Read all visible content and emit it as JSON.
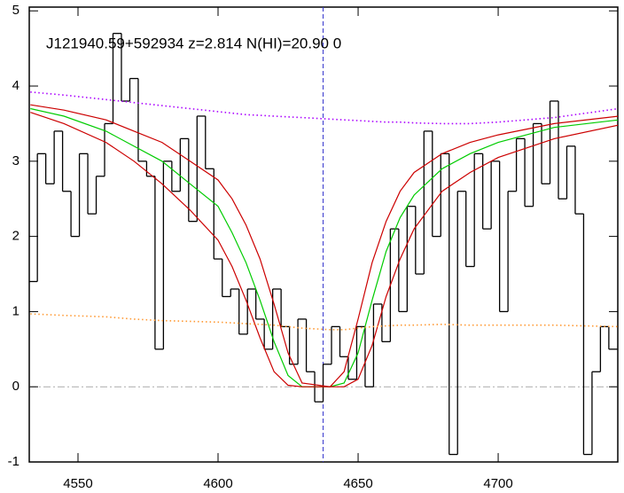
{
  "chart_data": {
    "type": "line",
    "title": "J121940.59+592934 z=2.814 N(HI)=20.90 0",
    "xlim": [
      4532.6,
      4742.7
    ],
    "ylim": [
      -1,
      5.05
    ],
    "xticks": [
      4550,
      4600,
      4650,
      4700
    ],
    "yticks": [
      -1,
      0,
      1,
      2,
      3,
      4,
      5
    ],
    "vlines": [
      4637.5
    ],
    "hlines": [
      0
    ],
    "series": [
      {
        "color": "#000000",
        "style": "steps",
        "x": [
          4534,
          4537,
          4540,
          4543,
          4546,
          4549,
          4552,
          4555,
          4558,
          4561,
          4564,
          4567,
          4570,
          4573,
          4576,
          4579,
          4582,
          4585,
          4588,
          4591,
          4594,
          4597,
          4600,
          4603,
          4606,
          4609,
          4612,
          4615,
          4618,
          4621,
          4624,
          4627,
          4630,
          4633,
          4636,
          4639,
          4642,
          4645,
          4648,
          4651,
          4654,
          4657,
          4660,
          4663,
          4666,
          4669,
          4672,
          4675,
          4678,
          4681,
          4684,
          4687,
          4690,
          4693,
          4696,
          4699,
          4702,
          4705,
          4708,
          4711,
          4714,
          4717,
          4720,
          4723,
          4726,
          4729,
          4732,
          4735,
          4738,
          4741
        ],
        "values": [
          1.4,
          3.1,
          2.7,
          3.4,
          2.6,
          2.0,
          3.1,
          2.3,
          2.8,
          3.5,
          4.7,
          3.8,
          4.1,
          3.0,
          2.8,
          0.5,
          3.0,
          2.6,
          3.3,
          2.2,
          3.6,
          2.9,
          1.7,
          1.2,
          1.3,
          0.7,
          1.3,
          0.9,
          0.5,
          1.3,
          0.8,
          0.3,
          0.9,
          0.2,
          -0.2,
          0.3,
          0.8,
          0.4,
          0.1,
          0.8,
          0.0,
          1.1,
          0.6,
          2.1,
          1.0,
          2.4,
          1.5,
          3.4,
          2.0,
          3.1,
          -0.9,
          2.6,
          1.6,
          3.1,
          2.1,
          3.0,
          1.0,
          2.6,
          3.3,
          2.4,
          3.5,
          2.7,
          3.8,
          2.5,
          3.2,
          2.3,
          -0.9,
          0.2,
          0.8,
          0.5
        ]
      },
      {
        "color": "#00cc00",
        "style": "solid",
        "x": [
          4533,
          4545,
          4560,
          4570,
          4580,
          4590,
          4600,
          4605,
          4610,
          4615,
          4620,
          4625,
          4630,
          4640,
          4645,
          4650,
          4655,
          4660,
          4665,
          4670,
          4680,
          4690,
          4700,
          4720,
          4743
        ],
        "values": [
          3.7,
          3.6,
          3.4,
          3.2,
          3.0,
          2.7,
          2.4,
          2.05,
          1.65,
          1.15,
          0.6,
          0.15,
          0,
          0,
          0.05,
          0.45,
          1.15,
          1.8,
          2.25,
          2.55,
          2.9,
          3.1,
          3.25,
          3.45,
          3.55
        ]
      },
      {
        "color": "#cc0000",
        "style": "solid",
        "x": [
          4533,
          4545,
          4560,
          4570,
          4580,
          4590,
          4600,
          4605,
          4610,
          4615,
          4620,
          4625,
          4630,
          4640,
          4645,
          4650,
          4655,
          4660,
          4665,
          4670,
          4680,
          4690,
          4700,
          4720,
          4743
        ],
        "values": [
          3.75,
          3.68,
          3.55,
          3.4,
          3.25,
          3.0,
          2.75,
          2.5,
          2.15,
          1.7,
          1.1,
          0.45,
          0.05,
          0,
          0.2,
          0.9,
          1.65,
          2.2,
          2.6,
          2.85,
          3.1,
          3.25,
          3.35,
          3.5,
          3.6
        ]
      },
      {
        "color": "#cc0000",
        "style": "solid",
        "x": [
          4533,
          4545,
          4560,
          4570,
          4580,
          4590,
          4600,
          4605,
          4610,
          4615,
          4620,
          4625,
          4630,
          4640,
          4645,
          4650,
          4655,
          4660,
          4665,
          4670,
          4680,
          4690,
          4700,
          4720,
          4743
        ],
        "values": [
          3.65,
          3.5,
          3.25,
          3.0,
          2.7,
          2.35,
          1.95,
          1.6,
          1.15,
          0.65,
          0.2,
          0.02,
          0,
          0,
          0,
          0.1,
          0.55,
          1.2,
          1.7,
          2.1,
          2.6,
          2.85,
          3.05,
          3.3,
          3.48
        ]
      },
      {
        "color": "#aa00ff",
        "style": "dotted",
        "x": [
          4533,
          4545,
          4560,
          4570,
          4580,
          4590,
          4600,
          4605,
          4610,
          4615,
          4620,
          4625,
          4630,
          4640,
          4645,
          4650,
          4655,
          4660,
          4665,
          4670,
          4680,
          4690,
          4700,
          4720,
          4743
        ],
        "values": [
          3.92,
          3.88,
          3.82,
          3.78,
          3.74,
          3.7,
          3.66,
          3.64,
          3.62,
          3.61,
          3.6,
          3.59,
          3.58,
          3.56,
          3.55,
          3.54,
          3.53,
          3.52,
          3.52,
          3.51,
          3.5,
          3.5,
          3.52,
          3.58,
          3.7
        ]
      },
      {
        "color": "#ff9933",
        "style": "dotted",
        "x": [
          4533,
          4545,
          4560,
          4570,
          4580,
          4590,
          4600,
          4605,
          4610,
          4615,
          4620,
          4625,
          4630,
          4640,
          4645,
          4650,
          4655,
          4660,
          4665,
          4670,
          4680,
          4690,
          4700,
          4720,
          4743
        ],
        "values": [
          0.97,
          0.95,
          0.93,
          0.9,
          0.88,
          0.87,
          0.86,
          0.85,
          0.84,
          0.83,
          0.82,
          0.8,
          0.78,
          0.76,
          0.76,
          0.78,
          0.8,
          0.81,
          0.82,
          0.82,
          0.83,
          0.82,
          0.82,
          0.82,
          0.8
        ]
      }
    ]
  }
}
